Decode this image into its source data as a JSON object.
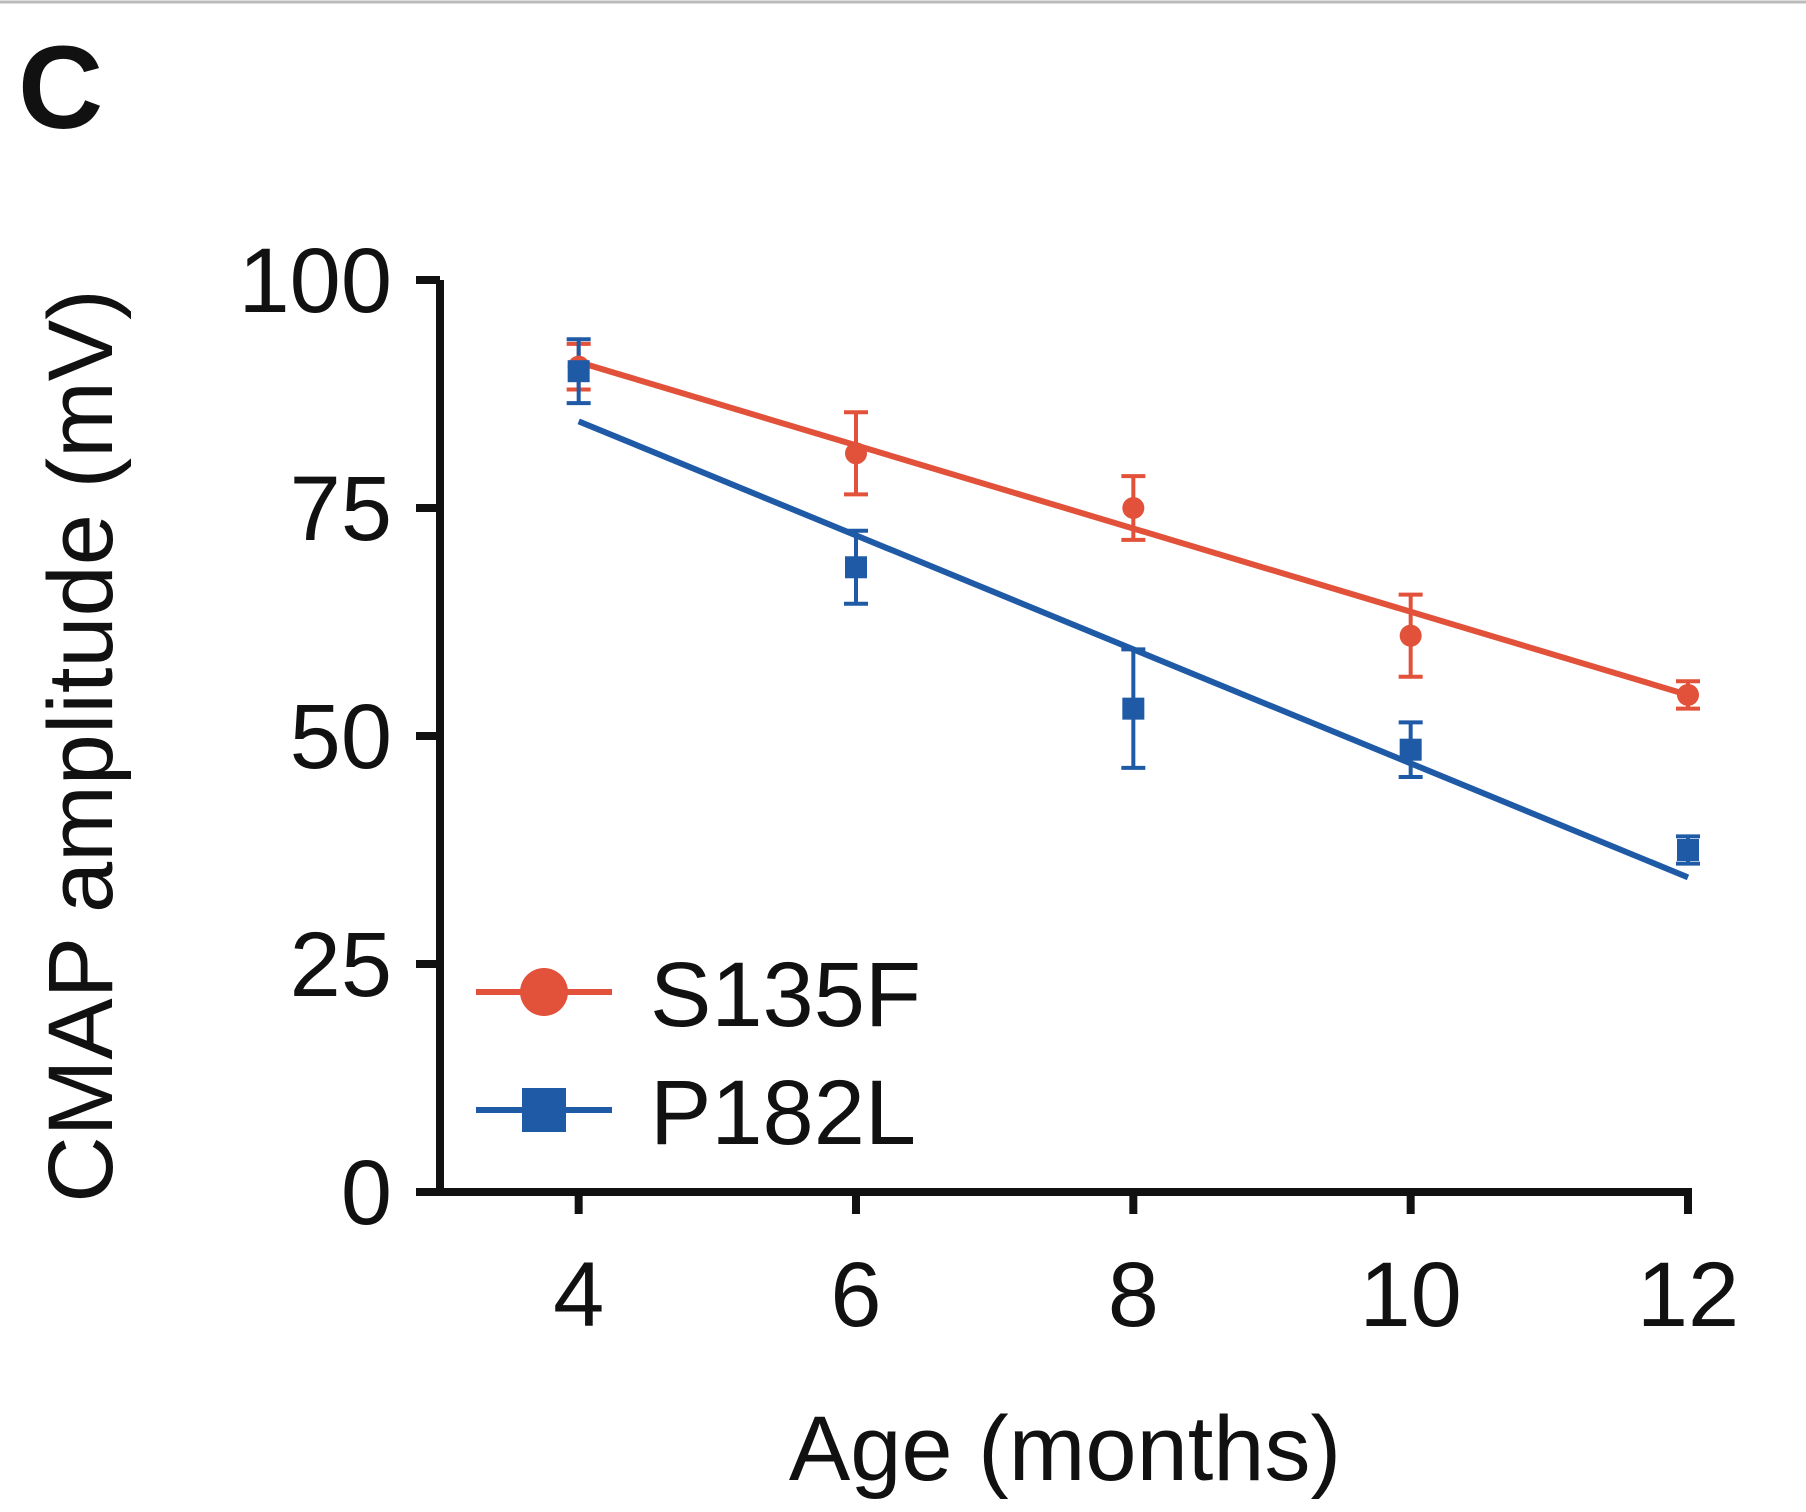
{
  "panel_label": "C",
  "chart_data": {
    "type": "scatter",
    "title": "",
    "xlabel": "Age (months)",
    "ylabel": "CMAP amplitude (mV)",
    "xlim": [
      3,
      12
    ],
    "ylim": [
      0,
      100
    ],
    "xticks": [
      "4",
      "6",
      "8",
      "10",
      "12"
    ],
    "yticks": [
      "0",
      "25",
      "50",
      "75",
      "100"
    ],
    "xtick_values": [
      4,
      6,
      8,
      10,
      12
    ],
    "ytick_values": [
      0,
      25,
      50,
      75,
      100
    ],
    "legend_position": "lower-left",
    "grid": false,
    "series": [
      {
        "name": "S135F",
        "marker": "circle",
        "color": "#e2513a",
        "x": [
          4,
          6,
          8,
          10,
          12
        ],
        "y": [
          90.5,
          81,
          75,
          61,
          54.5
        ],
        "error": [
          2.5,
          4.5,
          3.5,
          4.5,
          1.5
        ],
        "fit": {
          "x": [
            4,
            12
          ],
          "y": [
            91,
            54.5
          ]
        }
      },
      {
        "name": "P182L",
        "marker": "square",
        "color": "#1f5aa6",
        "x": [
          4,
          6,
          8,
          10,
          12
        ],
        "y": [
          90,
          68.5,
          53,
          48.5,
          37.5
        ],
        "error": [
          3.5,
          4,
          6.5,
          3,
          1.5
        ],
        "fit": {
          "x": [
            4,
            12
          ],
          "y": [
            84.5,
            34.5
          ]
        }
      }
    ]
  }
}
